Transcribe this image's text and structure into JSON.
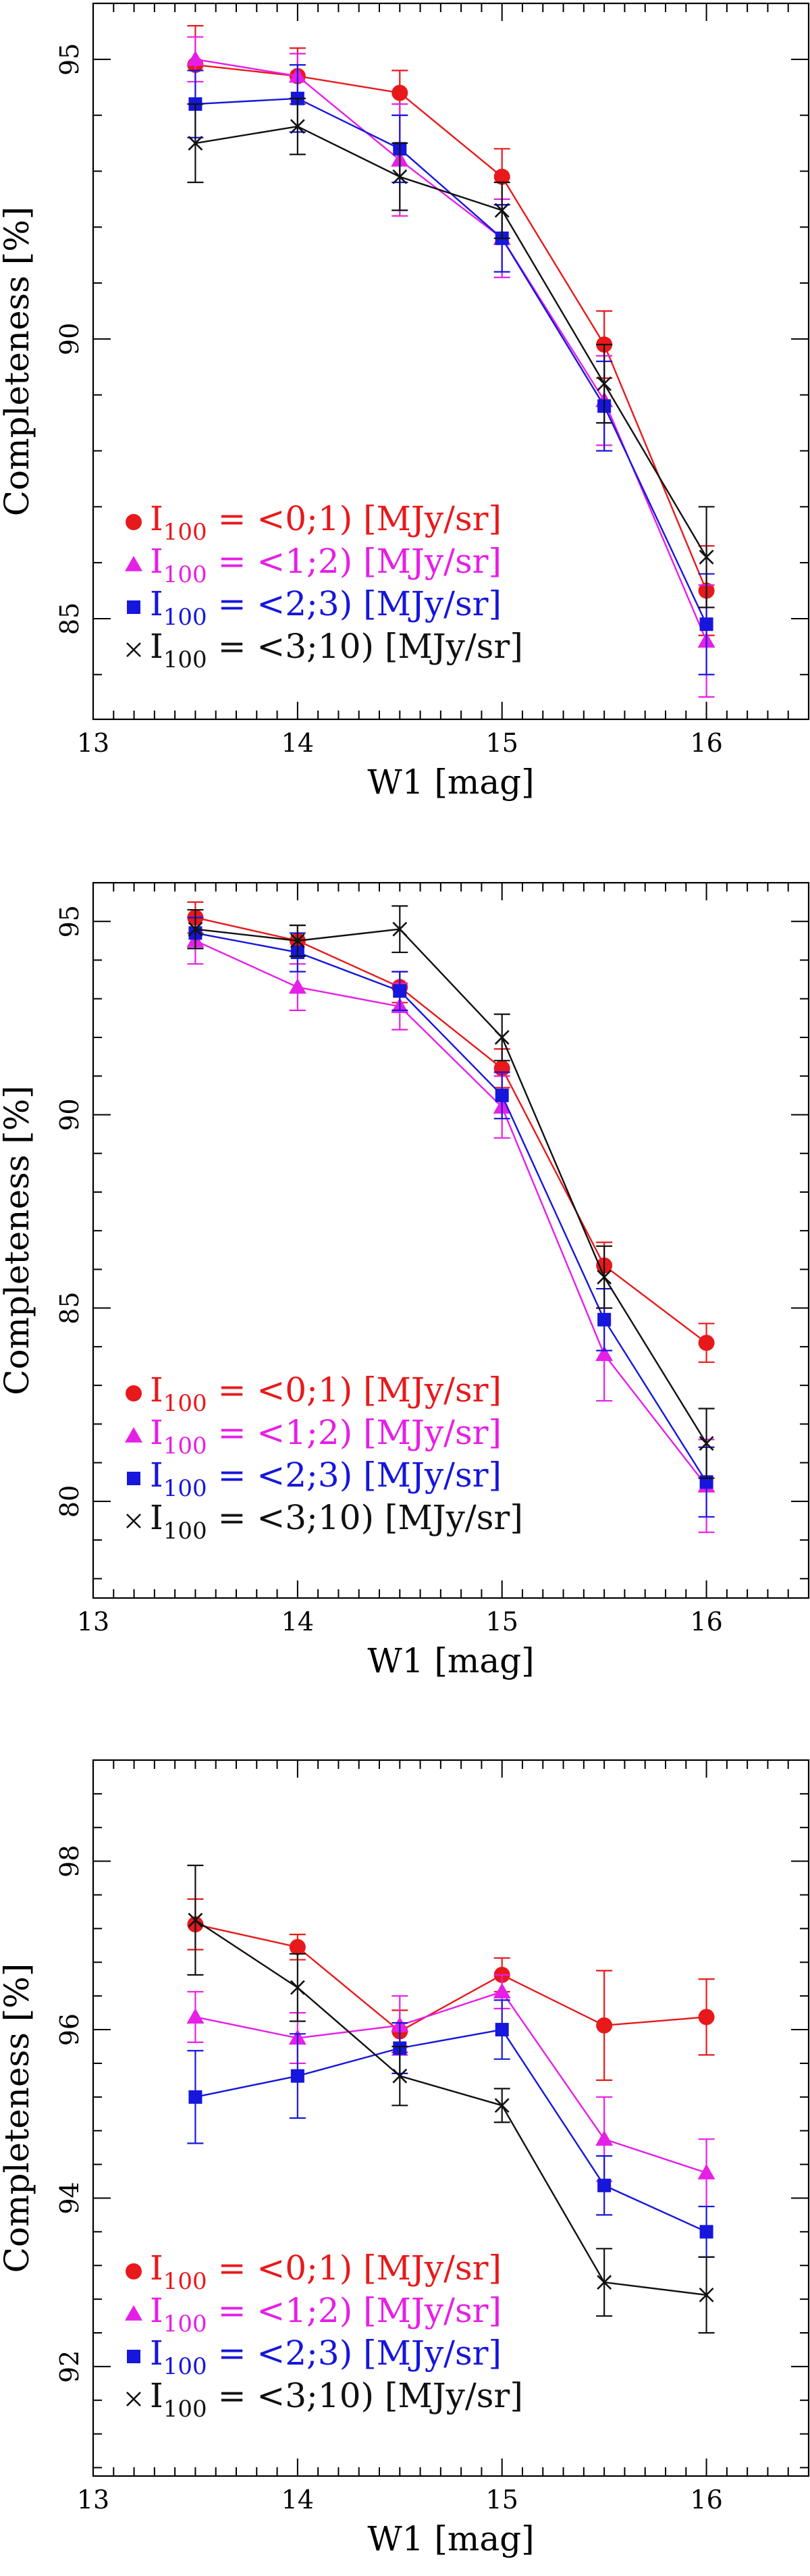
{
  "colors": {
    "red": "#e8191b",
    "magenta": "#e61fe6",
    "blue": "#1616dc",
    "black": "#111111"
  },
  "chart_data": [
    {
      "type": "line",
      "xlabel": "W1 [mag]",
      "ylabel": "Completeness [%]",
      "xlim": [
        13,
        16.5
      ],
      "ylim": [
        83.2,
        96
      ],
      "xticks": [
        13,
        14,
        15,
        16
      ],
      "yticks": [
        85,
        90,
        95
      ],
      "x": [
        13.5,
        14.0,
        14.5,
        15.0,
        15.5,
        16.0
      ],
      "legend_position": "bottom-left",
      "series": [
        {
          "name": "I100 = <0;1) [MJy/sr]",
          "marker": "circle",
          "color": "red",
          "values": [
            94.9,
            94.7,
            94.4,
            92.9,
            89.9,
            85.5
          ],
          "errors": [
            0.7,
            0.5,
            0.4,
            0.5,
            0.6,
            0.8
          ]
        },
        {
          "name": "I100 = <1;2) [MJy/sr]",
          "marker": "triangle",
          "color": "magenta",
          "values": [
            95.0,
            94.7,
            93.2,
            91.8,
            88.9,
            84.6
          ],
          "errors": [
            0.4,
            0.4,
            1.0,
            0.7,
            0.8,
            1.0
          ]
        },
        {
          "name": "I100 = <2;3) [MJy/sr]",
          "marker": "square",
          "color": "blue",
          "values": [
            94.2,
            94.3,
            93.4,
            91.8,
            88.8,
            84.9
          ],
          "errors": [
            0.6,
            0.6,
            0.6,
            0.6,
            0.8,
            0.9
          ]
        },
        {
          "name": "I100 = <3;10) [MJy/sr]",
          "marker": "cross",
          "color": "black",
          "values": [
            93.5,
            93.8,
            92.9,
            92.3,
            89.2,
            86.1
          ],
          "errors": [
            0.7,
            0.5,
            0.6,
            0.5,
            0.7,
            0.9
          ]
        }
      ],
      "legend": [
        {
          "parts": [
            "I",
            "100",
            " = <0;1) [MJy/sr]"
          ],
          "color": "red",
          "marker": "circle"
        },
        {
          "parts": [
            "I",
            "100",
            " = <1;2) [MJy/sr]"
          ],
          "color": "magenta",
          "marker": "triangle"
        },
        {
          "parts": [
            "I",
            "100",
            " = <2;3) [MJy/sr]"
          ],
          "color": "blue",
          "marker": "square"
        },
        {
          "parts": [
            "I",
            "100",
            " = <3;10) [MJy/sr]"
          ],
          "color": "black",
          "marker": "cross"
        }
      ]
    },
    {
      "type": "line",
      "xlabel": "W1 [mag]",
      "ylabel": "Completeness [%]",
      "xlim": [
        13,
        16.5
      ],
      "ylim": [
        77.5,
        96
      ],
      "xticks": [
        13,
        14,
        15,
        16
      ],
      "yticks": [
        80,
        85,
        90,
        95
      ],
      "x": [
        13.5,
        14.0,
        14.5,
        15.0,
        15.5,
        16.0
      ],
      "legend_position": "bottom-left",
      "series": [
        {
          "name": "I100 = <0;1) [MJy/sr]",
          "marker": "circle",
          "color": "red",
          "values": [
            95.1,
            94.5,
            93.3,
            91.2,
            86.1,
            84.1
          ],
          "errors": [
            0.4,
            0.4,
            0.4,
            0.5,
            0.6,
            0.5
          ]
        },
        {
          "name": "I100 = <1;2) [MJy/sr]",
          "marker": "triangle",
          "color": "magenta",
          "values": [
            94.5,
            93.3,
            92.8,
            90.2,
            83.8,
            80.4
          ],
          "errors": [
            0.6,
            0.6,
            0.6,
            0.8,
            1.2,
            1.2
          ]
        },
        {
          "name": "I100 = <2;3) [MJy/sr]",
          "marker": "square",
          "color": "blue",
          "values": [
            94.7,
            94.2,
            93.2,
            90.5,
            84.7,
            80.5
          ],
          "errors": [
            0.4,
            0.5,
            0.5,
            0.6,
            0.8,
            0.9
          ]
        },
        {
          "name": "I100 = <3;10) [MJy/sr]",
          "marker": "cross",
          "color": "black",
          "values": [
            94.8,
            94.5,
            94.8,
            92.0,
            85.8,
            81.5
          ],
          "errors": [
            0.5,
            0.4,
            0.6,
            0.6,
            0.8,
            0.9
          ]
        }
      ],
      "legend": [
        {
          "parts": [
            "I",
            "100",
            " = <0;1) [MJy/sr]"
          ],
          "color": "red",
          "marker": "circle"
        },
        {
          "parts": [
            "I",
            "100",
            " = <1;2) [MJy/sr]"
          ],
          "color": "magenta",
          "marker": "triangle"
        },
        {
          "parts": [
            "I",
            "100",
            " = <2;3) [MJy/sr]"
          ],
          "color": "blue",
          "marker": "square"
        },
        {
          "parts": [
            "I",
            "100",
            " = <3;10) [MJy/sr]"
          ],
          "color": "black",
          "marker": "cross"
        }
      ]
    },
    {
      "type": "line",
      "xlabel": "W1 [mag]",
      "ylabel": "Completeness [%]",
      "xlim": [
        13,
        16.5
      ],
      "ylim": [
        90.7,
        99.2
      ],
      "xticks": [
        13,
        14,
        15,
        16
      ],
      "yticks": [
        92,
        94,
        96,
        98
      ],
      "x": [
        13.5,
        14.0,
        14.5,
        15.0,
        15.5,
        16.0
      ],
      "legend_position": "bottom-left",
      "series": [
        {
          "name": "I100 = <0;1) [MJy/sr]",
          "marker": "circle",
          "color": "red",
          "values": [
            97.25,
            96.98,
            95.98,
            96.65,
            96.05,
            96.15
          ],
          "errors": [
            0.3,
            0.15,
            0.25,
            0.2,
            0.65,
            0.45
          ]
        },
        {
          "name": "I100 = <1;2) [MJy/sr]",
          "marker": "triangle",
          "color": "magenta",
          "values": [
            96.15,
            95.9,
            96.05,
            96.45,
            94.7,
            94.3
          ],
          "errors": [
            0.3,
            0.3,
            0.35,
            0.2,
            0.5,
            0.4
          ]
        },
        {
          "name": "I100 = <2;3) [MJy/sr]",
          "marker": "square",
          "color": "blue",
          "values": [
            95.2,
            95.45,
            95.78,
            96.0,
            94.15,
            93.6
          ],
          "errors": [
            0.55,
            0.5,
            0.3,
            0.35,
            0.35,
            0.3
          ]
        },
        {
          "name": "I100 = <3;10) [MJy/sr]",
          "marker": "cross",
          "color": "black",
          "values": [
            97.3,
            96.5,
            95.45,
            95.1,
            93.0,
            92.85
          ],
          "errors": [
            0.65,
            0.4,
            0.35,
            0.2,
            0.4,
            0.45
          ]
        }
      ],
      "legend": [
        {
          "parts": [
            "I",
            "100",
            " = <0;1) [MJy/sr]"
          ],
          "color": "red",
          "marker": "circle"
        },
        {
          "parts": [
            "I",
            "100",
            " = <1;2) [MJy/sr]"
          ],
          "color": "magenta",
          "marker": "triangle"
        },
        {
          "parts": [
            "I",
            "100",
            " = <2;3) [MJy/sr]"
          ],
          "color": "blue",
          "marker": "square"
        },
        {
          "parts": [
            "I",
            "100",
            " = <3;10) [MJy/sr]"
          ],
          "color": "black",
          "marker": "cross"
        }
      ]
    }
  ]
}
